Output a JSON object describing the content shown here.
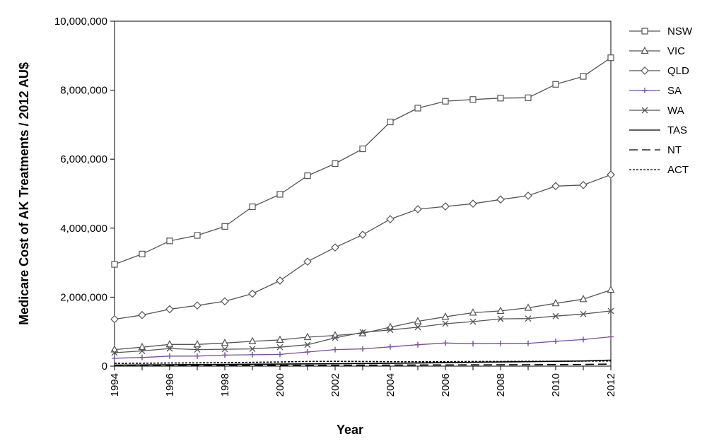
{
  "chart_data": {
    "type": "line",
    "title": "",
    "xlabel": "Year",
    "ylabel": "Medicare Cost of AK Treatments / 2012 AU$",
    "x": [
      1994,
      1995,
      1996,
      1997,
      1998,
      1999,
      2000,
      2001,
      2002,
      2003,
      2004,
      2005,
      2006,
      2007,
      2008,
      2009,
      2010,
      2011,
      2012
    ],
    "xticks": [
      "1994",
      "1996",
      "1998",
      "2000",
      "2002",
      "2004",
      "2006",
      "2008",
      "2010",
      "2012"
    ],
    "xlim": [
      1994,
      2012
    ],
    "ylim": [
      0,
      10000000
    ],
    "yticks": [
      "0",
      "2,000,000",
      "4,000,000",
      "6,000,000",
      "8,000,000",
      "10,000,000"
    ],
    "grid": false,
    "legend_position": "right",
    "series": [
      {
        "name": "NSW",
        "marker": "square",
        "dash": "solid",
        "color": "#555555",
        "values": [
          2950000,
          3250000,
          3630000,
          3790000,
          4050000,
          4620000,
          4980000,
          5520000,
          5870000,
          6300000,
          7080000,
          7480000,
          7680000,
          7730000,
          7770000,
          7780000,
          8170000,
          8400000,
          8940000
        ]
      },
      {
        "name": "VIC",
        "marker": "triangle",
        "dash": "solid",
        "color": "#555555",
        "values": [
          480000,
          550000,
          630000,
          630000,
          670000,
          720000,
          760000,
          840000,
          890000,
          950000,
          1130000,
          1300000,
          1430000,
          1550000,
          1600000,
          1690000,
          1820000,
          1940000,
          2210000
        ]
      },
      {
        "name": "QLD",
        "marker": "diamond",
        "dash": "solid",
        "color": "#555555",
        "values": [
          1360000,
          1480000,
          1650000,
          1760000,
          1880000,
          2100000,
          2480000,
          3030000,
          3440000,
          3810000,
          4260000,
          4550000,
          4630000,
          4710000,
          4830000,
          4940000,
          5220000,
          5250000,
          5550000
        ]
      },
      {
        "name": "SA",
        "marker": "plus",
        "dash": "solid",
        "color": "#7a4f97",
        "values": [
          230000,
          250000,
          290000,
          290000,
          320000,
          330000,
          340000,
          410000,
          480000,
          500000,
          560000,
          620000,
          670000,
          650000,
          660000,
          660000,
          720000,
          770000,
          850000
        ]
      },
      {
        "name": "WA",
        "marker": "cross",
        "dash": "solid",
        "color": "#555555",
        "values": [
          390000,
          440000,
          510000,
          480000,
          490000,
          500000,
          550000,
          620000,
          820000,
          980000,
          1050000,
          1130000,
          1230000,
          1290000,
          1370000,
          1380000,
          1450000,
          1510000,
          1600000
        ]
      },
      {
        "name": "TAS",
        "marker": "none",
        "dash": "solid",
        "color": "#000000",
        "values": [
          30000,
          35000,
          40000,
          45000,
          50000,
          55000,
          60000,
          65000,
          70000,
          75000,
          80000,
          90000,
          100000,
          110000,
          120000,
          130000,
          140000,
          150000,
          175000
        ]
      },
      {
        "name": "NT",
        "marker": "none",
        "dash": "long-dash",
        "color": "#000000",
        "values": [
          10000,
          12000,
          14000,
          16000,
          18000,
          20000,
          22000,
          24000,
          26000,
          28000,
          30000,
          32000,
          34000,
          36000,
          38000,
          40000,
          45000,
          50000,
          60000
        ]
      },
      {
        "name": "ACT",
        "marker": "none",
        "dash": "short-dash",
        "color": "#000000",
        "values": [
          80000,
          85000,
          90000,
          95000,
          100000,
          110000,
          120000,
          135000,
          140000,
          135000,
          130000,
          130000,
          130000,
          135000,
          135000,
          140000,
          140000,
          145000,
          150000
        ]
      }
    ]
  }
}
